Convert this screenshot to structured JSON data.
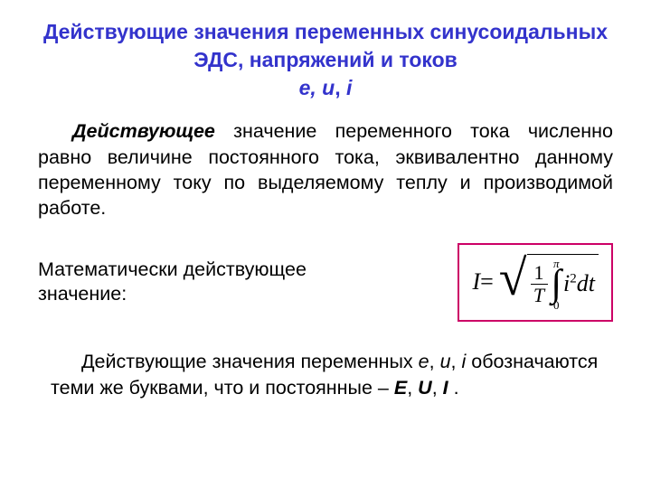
{
  "colors": {
    "title": "#3333cc",
    "body": "#000000",
    "formulaBorder": "#cc0066",
    "background": "#ffffff"
  },
  "title": {
    "line1": "Действующие значения переменных синусоидальных ЭДС, напряжений и токов",
    "vars": "e, u",
    "varsSep": ", ",
    "varLast": "i"
  },
  "para1": {
    "lead": "Действующее",
    "rest": " значение переменного тока численно равно величине постоянного тока, эквивалентно данному переменному току по выделяемому теплу и производимой работе."
  },
  "mathLabel": {
    "line1": "Математически действующее",
    "line2": " значение:"
  },
  "formula": {
    "lhs": "I",
    "eq": " = ",
    "fracNum": "1",
    "fracDen": "T",
    "intUpper": "π",
    "intLower": "0",
    "integrandVar": "i",
    "integrandExp": "2",
    "differential": "dt"
  },
  "para2": {
    "t1": "Действующие значения переменных ",
    "v1": "e",
    "s1": ", ",
    "v2": "u",
    "s2": ", ",
    "v3": "i",
    "t2": " обозначаются теми же буквами, что  и постоянные – ",
    "c1": "E",
    "cs1": ", ",
    "c2": "U",
    "cs2": ", ",
    "c3": "I",
    "end": " ."
  }
}
